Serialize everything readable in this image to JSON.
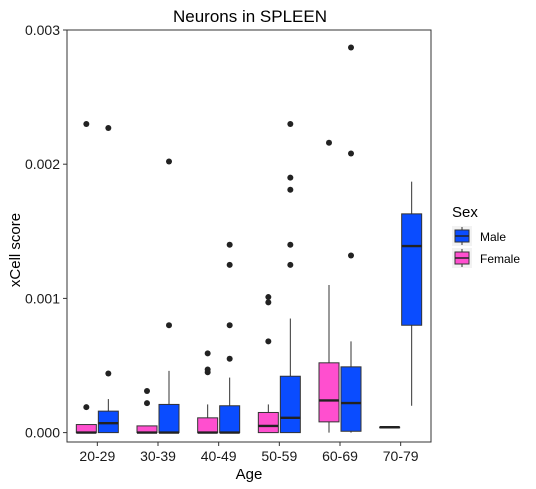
{
  "chart_data": {
    "type": "box",
    "title": "Neurons in SPLEEN",
    "xlabel": "Age",
    "ylabel": "xCell score",
    "ylim": [
      -7e-05,
      0.003
    ],
    "yticks": [
      {
        "value": 0,
        "label": "0.000"
      },
      {
        "value": 0.001,
        "label": "0.001"
      },
      {
        "value": 0.002,
        "label": "0.002"
      },
      {
        "value": 0.003,
        "label": "0.003"
      }
    ],
    "categories": [
      "20-29",
      "30-39",
      "40-49",
      "50-59",
      "60-69",
      "70-79"
    ],
    "grid": false,
    "legend": {
      "title": "Sex",
      "position": "right",
      "entries": [
        "Male",
        "Female"
      ]
    },
    "series": [
      {
        "name": "Female",
        "color": "#ff4fcf",
        "boxes": [
          {
            "category": "20-29",
            "q1": 0.0,
            "median": 0.0,
            "q3": 6e-05,
            "whisker_low": 0.0,
            "whisker_high": 6e-05,
            "outliers": [
              0.00019,
              0.0023
            ]
          },
          {
            "category": "30-39",
            "q1": 0.0,
            "median": 0.0,
            "q3": 5e-05,
            "whisker_low": 0.0,
            "whisker_high": 5e-05,
            "outliers": [
              0.00022,
              0.00031
            ]
          },
          {
            "category": "40-49",
            "q1": 0.0,
            "median": 0.0,
            "q3": 0.00011,
            "whisker_low": 0.0,
            "whisker_high": 0.00021,
            "outliers": [
              0.00045,
              0.00047,
              0.00059
            ]
          },
          {
            "category": "50-59",
            "q1": 0.0,
            "median": 5e-05,
            "q3": 0.00015,
            "whisker_low": 0.0,
            "whisker_high": 0.00021,
            "outliers": [
              0.00068,
              0.00097,
              0.00101
            ]
          },
          {
            "category": "60-69",
            "q1": 8e-05,
            "median": 0.00024,
            "q3": 0.00052,
            "whisker_low": 0.0,
            "whisker_high": 0.0011,
            "outliers": [
              0.00216
            ]
          },
          {
            "category": "70-79",
            "q1": 4e-05,
            "median": 4e-05,
            "q3": 4e-05,
            "whisker_low": 4e-05,
            "whisker_high": 4e-05,
            "outliers": []
          }
        ]
      },
      {
        "name": "Male",
        "color": "#0a4cff",
        "boxes": [
          {
            "category": "20-29",
            "q1": 0.0,
            "median": 7e-05,
            "q3": 0.00016,
            "whisker_low": 0.0,
            "whisker_high": 0.00025,
            "outliers": [
              0.00044,
              0.00227
            ]
          },
          {
            "category": "30-39",
            "q1": 0.0,
            "median": 0.0,
            "q3": 0.00021,
            "whisker_low": 0.0,
            "whisker_high": 0.00046,
            "outliers": [
              0.0008,
              0.00202
            ]
          },
          {
            "category": "40-49",
            "q1": 0.0,
            "median": 0.0,
            "q3": 0.0002,
            "whisker_low": 0.0,
            "whisker_high": 0.00041,
            "outliers": [
              0.00055,
              0.0008,
              0.00125,
              0.0014
            ]
          },
          {
            "category": "50-59",
            "q1": 0.0,
            "median": 0.00011,
            "q3": 0.00042,
            "whisker_low": 0.0,
            "whisker_high": 0.00085,
            "outliers": [
              0.00125,
              0.0014,
              0.00181,
              0.0019,
              0.0023
            ]
          },
          {
            "category": "60-69",
            "q1": 1e-05,
            "median": 0.00022,
            "q3": 0.00049,
            "whisker_low": 0.0,
            "whisker_high": 0.00068,
            "outliers": [
              0.00132,
              0.00208,
              0.00287
            ]
          },
          {
            "category": "70-79",
            "q1": 0.0008,
            "median": 0.00139,
            "q3": 0.00163,
            "whisker_low": 0.0002,
            "whisker_high": 0.00187,
            "outliers": []
          }
        ]
      }
    ]
  }
}
